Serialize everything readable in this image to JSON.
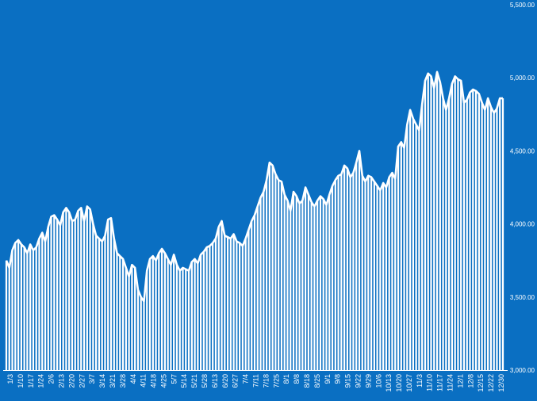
{
  "colors": {
    "background": "#0a6fc2",
    "bars": "#ffffff",
    "line": "#ffffff"
  },
  "chart_data": {
    "type": "area",
    "title": "",
    "xlabel": "",
    "ylabel": "",
    "ylim": [
      3000,
      5500
    ],
    "yticks": [
      "3,000.00",
      "3,500.00",
      "4,000.00",
      "4,500.00",
      "5,000.00",
      "5,500.00"
    ],
    "xticks": [
      "1/3",
      "1/10",
      "1/17",
      "1/24",
      "2/6",
      "2/13",
      "2/20",
      "2/27",
      "3/7",
      "3/14",
      "3/21",
      "3/28",
      "4/4",
      "4/11",
      "4/18",
      "4/25",
      "5/7",
      "5/14",
      "5/21",
      "5/28",
      "6/13",
      "6/20",
      "6/27",
      "7/4",
      "7/11",
      "7/18",
      "7/25",
      "8/1",
      "8/8",
      "8/18",
      "8/25",
      "9/1",
      "9/8",
      "9/15",
      "9/22",
      "9/29",
      "10/6",
      "10/13",
      "10/20",
      "10/27",
      "11/3",
      "11/10",
      "11/17",
      "11/24",
      "12/1",
      "12/8",
      "12/15",
      "12/22",
      "12/30"
    ],
    "grid": false,
    "legend": "none",
    "series": [
      {
        "name": "",
        "values": [
          3750,
          3700,
          3820,
          3870,
          3890,
          3860,
          3840,
          3800,
          3860,
          3820,
          3840,
          3900,
          3940,
          3880,
          3980,
          4050,
          4060,
          4030,
          3990,
          4080,
          4110,
          4080,
          4020,
          4030,
          4090,
          4110,
          4020,
          4120,
          4100,
          4000,
          3920,
          3900,
          3880,
          3920,
          4030,
          4040,
          3900,
          3800,
          3780,
          3760,
          3700,
          3640,
          3720,
          3700,
          3550,
          3500,
          3470,
          3680,
          3760,
          3780,
          3750,
          3800,
          3830,
          3800,
          3760,
          3720,
          3790,
          3720,
          3680,
          3700,
          3690,
          3680,
          3740,
          3760,
          3730,
          3790,
          3810,
          3840,
          3850,
          3870,
          3900,
          3980,
          4020,
          3920,
          3910,
          3900,
          3930,
          3880,
          3870,
          3850,
          3900,
          3960,
          4020,
          4060,
          4120,
          4180,
          4220,
          4300,
          4420,
          4400,
          4340,
          4300,
          4290,
          4200,
          4160,
          4090,
          4220,
          4190,
          4140,
          4160,
          4250,
          4200,
          4150,
          4120,
          4160,
          4190,
          4170,
          4130,
          4200,
          4260,
          4300,
          4330,
          4340,
          4400,
          4380,
          4320,
          4350,
          4420,
          4500,
          4330,
          4290,
          4330,
          4320,
          4290,
          4260,
          4230,
          4280,
          4250,
          4320,
          4350,
          4310,
          4530,
          4560,
          4520,
          4680,
          4780,
          4720,
          4680,
          4640,
          4820,
          4980,
          5030,
          5010,
          4930,
          5040,
          4970,
          4860,
          4780,
          4860,
          4960,
          5010,
          4990,
          4980,
          4830,
          4850,
          4900,
          4920,
          4910,
          4890,
          4830,
          4780,
          4860,
          4800,
          4760,
          4790,
          4860,
          4860
        ]
      }
    ]
  }
}
